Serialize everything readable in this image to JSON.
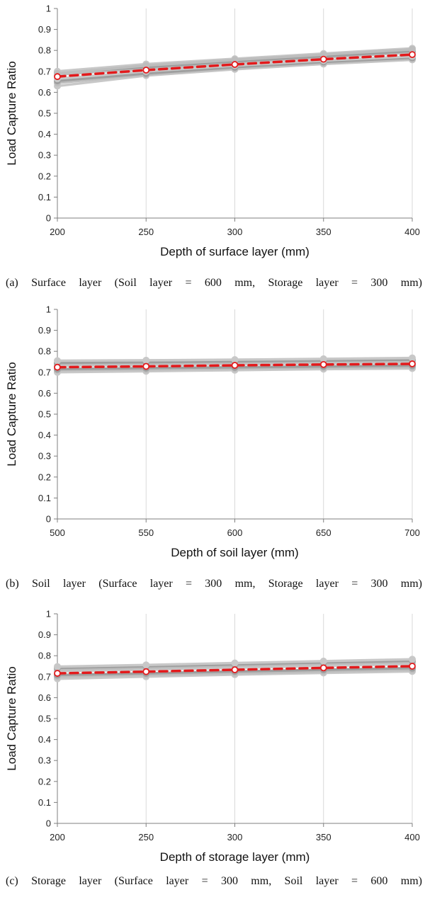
{
  "chart_data": [
    {
      "type": "line",
      "caption": "(a)  Surface layer (Soil layer = 600 mm, Storage layer = 300 mm)",
      "xlabel": "Depth of surface layer (mm)",
      "ylabel": "Load Capture Ratio",
      "x": [
        200,
        250,
        300,
        350,
        400
      ],
      "xlim": [
        200,
        400
      ],
      "ylim": [
        0,
        1
      ],
      "yticks": [
        "0",
        "0.1",
        "0.2",
        "0.3",
        "0.4",
        "0.5",
        "0.6",
        "0.7",
        "0.8",
        "0.9",
        "1"
      ],
      "xticks": [
        "200",
        "250",
        "300",
        "350",
        "400"
      ],
      "grid": true,
      "mean_series": {
        "values": [
          0.675,
          0.706,
          0.733,
          0.758,
          0.78
        ],
        "color": "#e31a1c",
        "style": "dashed",
        "markers": true
      },
      "ensemble_series": [
        {
          "values": [
            0.63,
            0.68,
            0.71,
            0.735,
            0.755
          ],
          "color": "#c8c8c8"
        },
        {
          "values": [
            0.645,
            0.685,
            0.715,
            0.74,
            0.76
          ],
          "color": "#bdbdbd"
        },
        {
          "values": [
            0.655,
            0.69,
            0.72,
            0.745,
            0.765
          ],
          "color": "#9e9e9e"
        },
        {
          "values": [
            0.665,
            0.7,
            0.728,
            0.752,
            0.772
          ],
          "color": "#c8c8c8"
        },
        {
          "values": [
            0.685,
            0.712,
            0.74,
            0.765,
            0.79
          ],
          "color": "#bdbdbd"
        },
        {
          "values": [
            0.695,
            0.72,
            0.748,
            0.772,
            0.797
          ],
          "color": "#9e9e9e"
        },
        {
          "values": [
            0.7,
            0.735,
            0.76,
            0.785,
            0.81
          ],
          "color": "#c8c8c8"
        },
        {
          "values": [
            0.69,
            0.728,
            0.755,
            0.78,
            0.805
          ],
          "color": "#bdbdbd"
        }
      ]
    },
    {
      "type": "line",
      "caption": "(b)  Soil layer (Surface layer = 300 mm, Storage layer = 300 mm)",
      "xlabel": "Depth of soil layer (mm)",
      "ylabel": "Load Capture Ratio",
      "x": [
        500,
        550,
        600,
        650,
        700
      ],
      "xlim": [
        500,
        700
      ],
      "ylim": [
        0,
        1
      ],
      "yticks": [
        "0",
        "0.1",
        "0.2",
        "0.3",
        "0.4",
        "0.5",
        "0.6",
        "0.7",
        "0.8",
        "0.9",
        "1"
      ],
      "xticks": [
        "500",
        "550",
        "600",
        "650",
        "700"
      ],
      "grid": true,
      "mean_series": {
        "values": [
          0.724,
          0.728,
          0.733,
          0.737,
          0.74
        ],
        "color": "#e31a1c",
        "style": "dashed",
        "markers": true
      },
      "ensemble_series": [
        {
          "values": [
            0.7,
            0.705,
            0.71,
            0.715,
            0.718
          ],
          "color": "#c8c8c8"
        },
        {
          "values": [
            0.71,
            0.713,
            0.718,
            0.722,
            0.725
          ],
          "color": "#bdbdbd"
        },
        {
          "values": [
            0.715,
            0.72,
            0.724,
            0.728,
            0.732
          ],
          "color": "#9e9e9e"
        },
        {
          "values": [
            0.73,
            0.734,
            0.738,
            0.742,
            0.745
          ],
          "color": "#c8c8c8"
        },
        {
          "values": [
            0.738,
            0.742,
            0.746,
            0.75,
            0.753
          ],
          "color": "#bdbdbd"
        },
        {
          "values": [
            0.745,
            0.748,
            0.752,
            0.756,
            0.76
          ],
          "color": "#9e9e9e"
        },
        {
          "values": [
            0.755,
            0.757,
            0.76,
            0.764,
            0.768
          ],
          "color": "#c8c8c8"
        }
      ]
    },
    {
      "type": "line",
      "caption": "(c)  Storage layer (Surface layer = 300 mm, Soil layer = 600 mm)",
      "xlabel": "Depth of storage layer (mm)",
      "ylabel": "Load Capture Ratio",
      "x": [
        200,
        250,
        300,
        350,
        400
      ],
      "xlim": [
        200,
        400
      ],
      "ylim": [
        0,
        1
      ],
      "yticks": [
        "0",
        "0.1",
        "0.2",
        "0.3",
        "0.4",
        "0.5",
        "0.6",
        "0.7",
        "0.8",
        "0.9",
        "1"
      ],
      "xticks": [
        "200",
        "250",
        "300",
        "350",
        "400"
      ],
      "grid": true,
      "mean_series": {
        "values": [
          0.716,
          0.724,
          0.733,
          0.742,
          0.75
        ],
        "color": "#e31a1c",
        "style": "dashed",
        "markers": true
      },
      "ensemble_series": [
        {
          "values": [
            0.69,
            0.7,
            0.71,
            0.718,
            0.725
          ],
          "color": "#c8c8c8"
        },
        {
          "values": [
            0.7,
            0.708,
            0.717,
            0.725,
            0.733
          ],
          "color": "#bdbdbd"
        },
        {
          "values": [
            0.708,
            0.716,
            0.725,
            0.733,
            0.741
          ],
          "color": "#9e9e9e"
        },
        {
          "values": [
            0.725,
            0.733,
            0.742,
            0.751,
            0.76
          ],
          "color": "#c8c8c8"
        },
        {
          "values": [
            0.733,
            0.742,
            0.751,
            0.76,
            0.769
          ],
          "color": "#bdbdbd"
        },
        {
          "values": [
            0.742,
            0.75,
            0.759,
            0.768,
            0.776
          ],
          "color": "#9e9e9e"
        },
        {
          "values": [
            0.748,
            0.756,
            0.765,
            0.774,
            0.783
          ],
          "color": "#c8c8c8"
        }
      ]
    }
  ]
}
